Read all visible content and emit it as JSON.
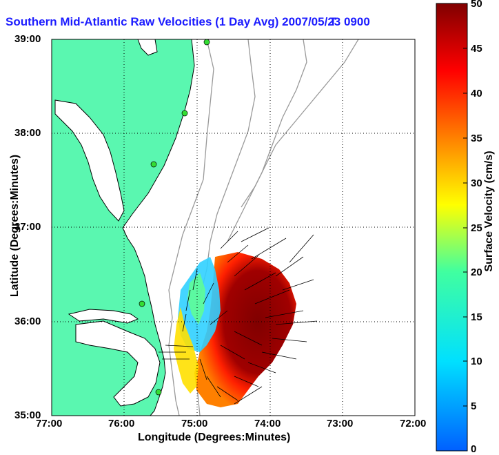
{
  "title": "Southern Mid-Atlantic Raw Velocities (1 Day Avg) 2007/05/23 0900",
  "title_tail": "T",
  "axes": {
    "xlabel": "Longitude (Degrees:Minutes)",
    "ylabel": "Latitude (Degrees:Minutes)",
    "xticks": [
      "77:00",
      "76:00",
      "75:00",
      "74:00",
      "73:00",
      "72:00"
    ],
    "yticks": [
      "39:00",
      "38:00",
      "37:00",
      "36:00",
      "35:00"
    ]
  },
  "colorbar": {
    "label": "Surface Velocity (cm/s)",
    "ticks": [
      "50",
      "45",
      "40",
      "35",
      "30",
      "25",
      "20",
      "15",
      "10",
      "5",
      "0"
    ],
    "min": 0,
    "max": 50,
    "colors": [
      "#0000ff",
      "#00ffff",
      "#ffff00",
      "#ff0000",
      "#800000"
    ]
  },
  "colors": {
    "land": "#5af7b0",
    "coast": "#000000",
    "bathymetry": "#999999",
    "grid": "#000000",
    "station": "#33dd33"
  }
}
